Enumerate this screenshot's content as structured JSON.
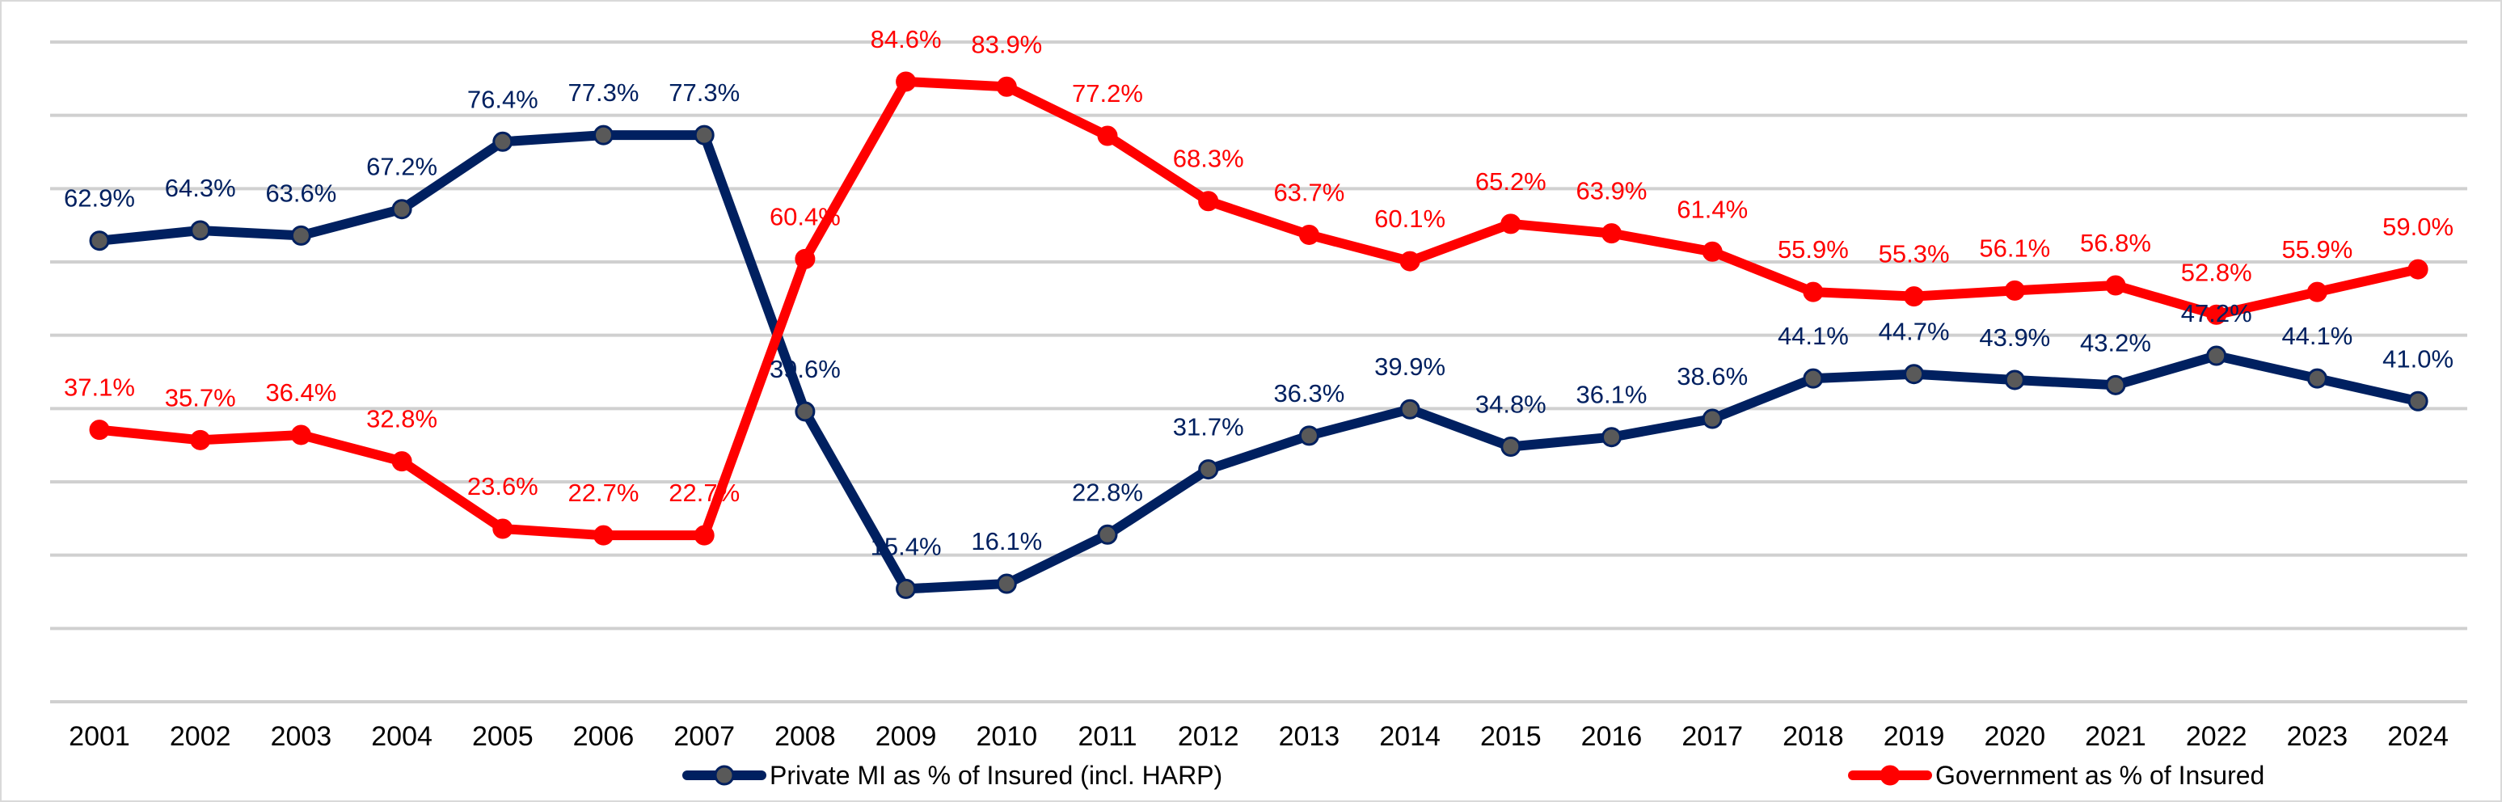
{
  "chart_data": {
    "type": "line",
    "categories": [
      "2001",
      "2002",
      "2003",
      "2004",
      "2005",
      "2006",
      "2007",
      "2008",
      "2009",
      "2010",
      "2011",
      "2012",
      "2013",
      "2014",
      "2015",
      "2016",
      "2017",
      "2018",
      "2019",
      "2020",
      "2021",
      "2022",
      "2023",
      "2024"
    ],
    "ylim": [
      0,
      90
    ],
    "grid": true,
    "legend_position": "bottom",
    "series": [
      {
        "name": "Private MI as % of Insured (incl. HARP)",
        "color": "#002060",
        "marker_color": "#595959",
        "values": [
          62.9,
          64.3,
          63.6,
          67.2,
          76.4,
          77.3,
          77.3,
          39.6,
          15.4,
          16.1,
          22.8,
          31.7,
          36.3,
          39.9,
          34.8,
          36.1,
          38.6,
          44.1,
          44.7,
          43.9,
          43.2,
          47.2,
          44.1,
          41.0
        ],
        "labels": [
          "62.9%",
          "64.3%",
          "63.6%",
          "67.2%",
          "76.4%",
          "77.3%",
          "77.3%",
          "39.6%",
          "15.4%",
          "16.1%",
          "22.8%",
          "31.7%",
          "36.3%",
          "39.9%",
          "34.8%",
          "36.1%",
          "38.6%",
          "44.1%",
          "44.7%",
          "43.9%",
          "43.2%",
          "47.2%",
          "44.1%",
          "41.0%"
        ]
      },
      {
        "name": "Government as % of Insured",
        "color": "#ff0000",
        "marker_color": "#ff0000",
        "values": [
          37.1,
          35.7,
          36.4,
          32.8,
          23.6,
          22.7,
          22.7,
          60.4,
          84.6,
          83.9,
          77.2,
          68.3,
          63.7,
          60.1,
          65.2,
          63.9,
          61.4,
          55.9,
          55.3,
          56.1,
          56.8,
          52.8,
          55.9,
          59.0
        ],
        "labels": [
          "37.1%",
          "35.7%",
          "36.4%",
          "32.8%",
          "23.6%",
          "22.7%",
          "22.7%",
          "60.4%",
          "84.6%",
          "83.9%",
          "77.2%",
          "68.3%",
          "63.7%",
          "60.1%",
          "65.2%",
          "63.9%",
          "61.4%",
          "55.9%",
          "55.3%",
          "56.1%",
          "56.8%",
          "52.8%",
          "55.9%",
          "59.0%"
        ]
      }
    ]
  }
}
